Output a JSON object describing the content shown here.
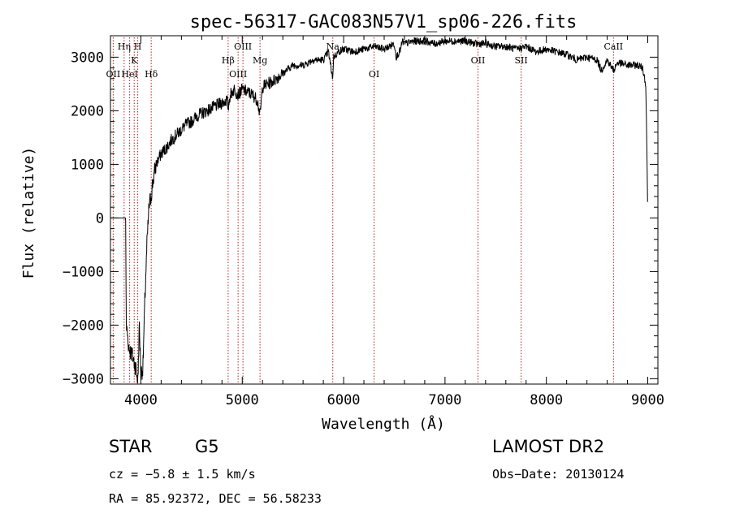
{
  "chart_data": {
    "type": "line",
    "title": "spec-56317-GAC083N57V1_sp06-226.fits",
    "xlabel": "Wavelength (Å)",
    "ylabel": "Flux (relative)",
    "xlim": [
      3700,
      9100
    ],
    "ylim": [
      -3100,
      3400
    ],
    "xticks": [
      4000,
      5000,
      6000,
      7000,
      8000,
      9000
    ],
    "yticks": [
      -3000,
      -2000,
      -1000,
      0,
      1000,
      2000,
      3000
    ],
    "grid": false,
    "series": [
      {
        "x": [
          3700,
          3800,
          3850,
          3855,
          3870,
          3880,
          3900,
          3920,
          3950,
          3970,
          3985,
          4000,
          4020,
          4040,
          4060,
          4080,
          4100,
          4120,
          4150,
          4200,
          4250,
          4300,
          4350,
          4400,
          4450,
          4500,
          4550,
          4600,
          4700,
          4800,
          4850,
          4862,
          4880,
          4920,
          4960,
          5000,
          5050,
          5100,
          5150,
          5175,
          5200,
          5300,
          5400,
          5500,
          5600,
          5700,
          5800,
          5850,
          5893,
          5900,
          5950,
          6000,
          6100,
          6200,
          6300,
          6400,
          6500,
          6520,
          6563,
          6580,
          6600,
          6700,
          6800,
          6900,
          7000,
          7100,
          7200,
          7300,
          7400,
          7500,
          7600,
          7700,
          7800,
          7900,
          8000,
          8100,
          8200,
          8300,
          8400,
          8500,
          8542,
          8600,
          8662,
          8700,
          8800,
          8900,
          8950,
          8980,
          8990,
          9000
        ],
        "y": [
          0,
          0,
          0,
          -2000,
          -2200,
          -2400,
          -2500,
          -2600,
          -2800,
          -3050,
          -2000,
          -2900,
          -2800,
          -1500,
          -500,
          200,
          400,
          700,
          1000,
          1200,
          1300,
          1450,
          1550,
          1650,
          1750,
          1800,
          1900,
          1950,
          2050,
          2150,
          2200,
          2050,
          2300,
          2400,
          2300,
          2400,
          2350,
          2300,
          2200,
          1900,
          2450,
          2550,
          2700,
          2850,
          2850,
          2950,
          2950,
          3100,
          2600,
          3000,
          3100,
          3150,
          3100,
          3150,
          3200,
          3150,
          3250,
          3000,
          3150,
          3300,
          3250,
          3300,
          3300,
          3250,
          3300,
          3300,
          3300,
          3250,
          3250,
          3200,
          3200,
          3150,
          3200,
          3100,
          3150,
          3100,
          3050,
          2950,
          3000,
          2950,
          2750,
          2950,
          2750,
          2900,
          2850,
          2850,
          2800,
          2500,
          1500,
          0
        ]
      }
    ],
    "lines": [
      {
        "label": "OII",
        "x": 3727,
        "row": 3
      },
      {
        "label": "Hη",
        "x": 3835,
        "row": 1
      },
      {
        "label": "HeI",
        "x": 3889,
        "row": 3
      },
      {
        "label": "K",
        "x": 3934,
        "row": 2
      },
      {
        "label": "H",
        "x": 3969,
        "row": 1
      },
      {
        "label": "Hδ",
        "x": 4102,
        "row": 3
      },
      {
        "label": "Hβ",
        "x": 4861,
        "row": 2
      },
      {
        "label": "OIII",
        "x": 4959,
        "row": 3
      },
      {
        "label": "OIII",
        "x": 5007,
        "row": 1
      },
      {
        "label": "Mg",
        "x": 5175,
        "row": 2
      },
      {
        "label": "Na",
        "x": 5893,
        "row": 1
      },
      {
        "label": "OI",
        "x": 6300,
        "row": 3
      },
      {
        "label": "OII",
        "x": 7325,
        "row": 2
      },
      {
        "label": "SII",
        "x": 7751,
        "row": 2
      },
      {
        "label": "CaII",
        "x": 8662,
        "row": 1
      }
    ]
  },
  "info": {
    "class": "STAR",
    "subclass": "G5",
    "survey": "LAMOST DR2",
    "cz": "cz = −5.8 ± 1.5 km/s",
    "obs_date": "Obs−Date: 20130124",
    "coords": "RA =  85.92372, DEC =  56.58233"
  },
  "colors": {
    "axis": "#000000",
    "spectrum": "#000000",
    "line_marker": "#b22222",
    "background": "#ffffff"
  }
}
